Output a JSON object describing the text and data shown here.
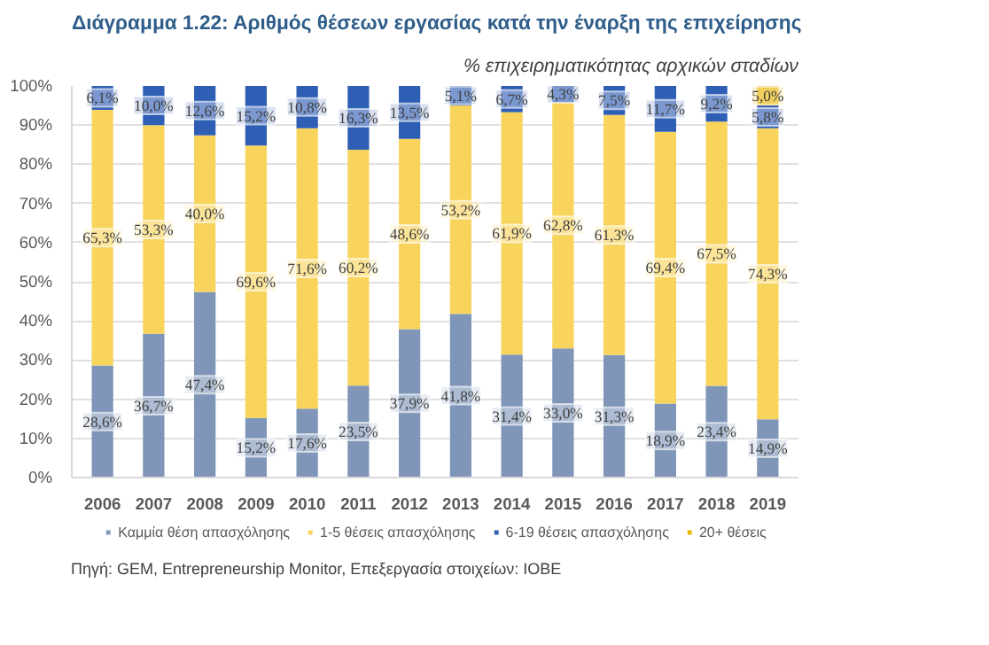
{
  "chart_data": {
    "type": "bar",
    "stacked": true,
    "title": "Διάγραμμα 1.22: Αριθμός θέσεων εργασίας κατά την έναρξη της επιχείρησης",
    "subtitle": "% επιχειρηματικότητας αρχικών σταδίων",
    "categories": [
      "2006",
      "2007",
      "2008",
      "2009",
      "2010",
      "2011",
      "2012",
      "2013",
      "2014",
      "2015",
      "2016",
      "2017",
      "2018",
      "2019"
    ],
    "series": [
      {
        "name": "Καμμία θέση απασχόλησης",
        "color": "#7f96b8",
        "values": [
          28.6,
          36.7,
          47.4,
          15.2,
          17.6,
          23.5,
          37.9,
          41.8,
          31.4,
          33.0,
          31.3,
          18.9,
          23.4,
          14.9
        ],
        "value_labels": [
          "28,6%",
          "36,7%",
          "47,4%",
          "15,2%",
          "17,6%",
          "23,5%",
          "37,9%",
          "41,8%",
          "31,4%",
          "33,0%",
          "31,3%",
          "18,9%",
          "23,4%",
          "14,9%"
        ]
      },
      {
        "name": "1-5 θέσεις απασχόλησης",
        "color": "#f9d45c",
        "values": [
          65.3,
          53.3,
          40.0,
          69.6,
          71.6,
          60.2,
          48.6,
          53.2,
          61.9,
          62.8,
          61.3,
          69.4,
          67.5,
          74.3
        ],
        "value_labels": [
          "65,3%",
          "53,3%",
          "40,0%",
          "69,6%",
          "71,6%",
          "60,2%",
          "48,6%",
          "53,2%",
          "61,9%",
          "62,8%",
          "61,3%",
          "69,4%",
          "67,5%",
          "74,3%"
        ]
      },
      {
        "name": "6-19 θέσεις απασχόλησης",
        "color": "#2f5eb5",
        "values": [
          6.1,
          10.0,
          12.6,
          15.2,
          10.8,
          16.3,
          13.5,
          5.1,
          6.7,
          4.3,
          7.5,
          11.7,
          9.2,
          5.8
        ],
        "value_labels": [
          "6,1%",
          "10,0%",
          "12,6%",
          "15,2%",
          "10,8%",
          "16,3%",
          "13,5%",
          "5,1%",
          "6,7%",
          "4,3%",
          "7,5%",
          "11,7%",
          "9,2%",
          "5,8%"
        ]
      },
      {
        "name": "20+ θέσεις",
        "color": "#e8b400",
        "values": [
          null,
          null,
          null,
          null,
          null,
          null,
          null,
          null,
          null,
          null,
          null,
          null,
          null,
          5.0
        ],
        "value_labels": [
          null,
          null,
          null,
          null,
          null,
          null,
          null,
          null,
          null,
          null,
          null,
          null,
          null,
          "5,0%"
        ]
      }
    ],
    "ylim": [
      0,
      100
    ],
    "yticks": [
      {
        "value": 0,
        "label": "0%"
      },
      {
        "value": 10,
        "label": "10%"
      },
      {
        "value": 20,
        "label": "20%"
      },
      {
        "value": 30,
        "label": "30%"
      },
      {
        "value": 40,
        "label": "40%"
      },
      {
        "value": 50,
        "label": "50%"
      },
      {
        "value": 60,
        "label": "60%"
      },
      {
        "value": 70,
        "label": "70%"
      },
      {
        "value": 80,
        "label": "80%"
      },
      {
        "value": 90,
        "label": "90%"
      },
      {
        "value": 100,
        "label": "100%"
      }
    ],
    "grid": "y",
    "legend": "bottom",
    "annotations": [
      "Πηγή: GEM, Entrepreneurship Monitor, Επεξεργασία στοιχείων: ΙΟΒΕ"
    ]
  }
}
